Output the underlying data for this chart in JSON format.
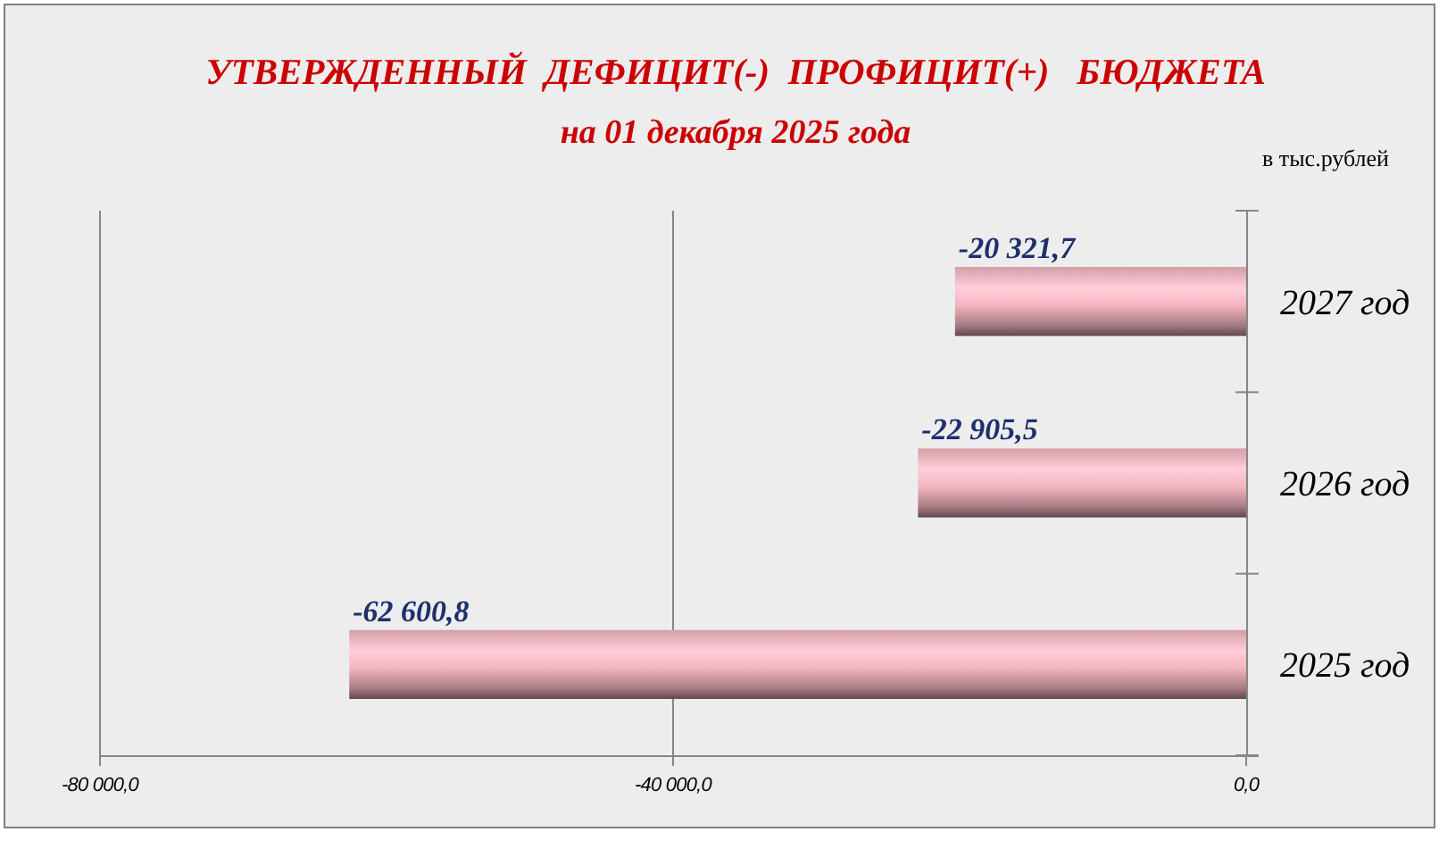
{
  "chart_data": {
    "type": "bar",
    "orientation": "horizontal",
    "title": "УТВЕРЖДЕННЫЙ  ДЕФИЦИТ(-)  ПРОФИЦИТ(+)   БЮДЖЕТА",
    "subtitle": "на 01 декабря 2025 года",
    "annotations": [
      "в тыс.рублей"
    ],
    "categories": [
      "2027 год",
      "2026 год",
      "2025 год"
    ],
    "values": [
      -20321.7,
      -22905.5,
      -62600.8
    ],
    "value_labels": [
      "-20 321,7",
      "-22 905,5",
      "-62 600,8"
    ],
    "color": "#f4b6c0",
    "xlim": [
      -80000,
      0
    ],
    "xticks": [
      {
        "value": -80000,
        "label": "-80 000,0"
      },
      {
        "value": -40000,
        "label": "-40 000,0"
      },
      {
        "value": 0,
        "label": "0,0"
      }
    ],
    "grid": "x"
  }
}
